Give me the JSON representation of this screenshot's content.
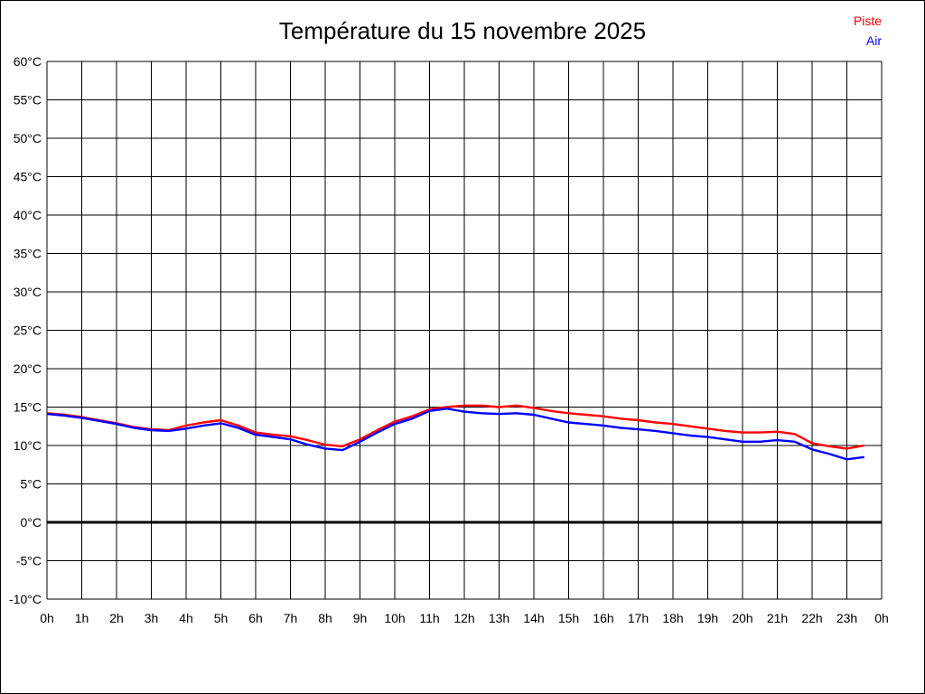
{
  "chart_data": {
    "type": "line",
    "title": "Température du 15 novembre 2025",
    "xlabel": "",
    "ylabel": "",
    "ylim": [
      -10,
      60
    ],
    "y_step": 5,
    "y_unit": "°C",
    "x_hours_range": [
      0,
      24
    ],
    "grid": true,
    "zero_line_bold": true,
    "legend_position": "top-right",
    "grid_color": "#000000",
    "background_color": "#ffffff",
    "y_tick_labels": [
      "60°C",
      "55°C",
      "50°C",
      "45°C",
      "40°C",
      "35°C",
      "30°C",
      "25°C",
      "20°C",
      "15°C",
      "10°C",
      "5°C",
      "0°C",
      "-5°C",
      "-10°C"
    ],
    "x_tick_labels": [
      "0h",
      "1h",
      "2h",
      "3h",
      "4h",
      "5h",
      "6h",
      "7h",
      "8h",
      "9h",
      "10h",
      "11h",
      "12h",
      "13h",
      "14h",
      "15h",
      "16h",
      "17h",
      "18h",
      "19h",
      "20h",
      "21h",
      "22h",
      "23h",
      "0h"
    ],
    "x": [
      0,
      0.5,
      1,
      1.5,
      2,
      2.5,
      3,
      3.5,
      4,
      4.5,
      5,
      5.5,
      6,
      6.5,
      7,
      7.5,
      8,
      8.5,
      9,
      9.5,
      10,
      10.5,
      11,
      11.5,
      12,
      12.5,
      13,
      13.5,
      14,
      14.5,
      15,
      15.5,
      16,
      16.5,
      17,
      17.5,
      18,
      18.5,
      19,
      19.5,
      20,
      20.5,
      21,
      21.5,
      22,
      22.5,
      23,
      23.5
    ],
    "series": [
      {
        "name": "Piste",
        "color": "#ff0000",
        "values": [
          14.2,
          14.0,
          13.7,
          13.3,
          12.9,
          12.4,
          12.1,
          12.0,
          12.6,
          13.0,
          13.3,
          12.6,
          11.7,
          11.4,
          11.2,
          10.7,
          10.1,
          9.9,
          10.8,
          12.0,
          13.1,
          13.8,
          14.7,
          15.0,
          15.2,
          15.2,
          15.0,
          15.2,
          14.9,
          14.5,
          14.2,
          14.0,
          13.8,
          13.5,
          13.3,
          13.0,
          12.8,
          12.5,
          12.2,
          11.9,
          11.7,
          11.7,
          11.8,
          11.5,
          10.3,
          9.9,
          9.6,
          10.0
        ]
      },
      {
        "name": "Air",
        "color": "#0000ff",
        "values": [
          14.1,
          13.9,
          13.6,
          13.2,
          12.8,
          12.3,
          12.0,
          11.9,
          12.2,
          12.6,
          12.9,
          12.3,
          11.4,
          11.1,
          10.8,
          10.1,
          9.6,
          9.4,
          10.5,
          11.7,
          12.8,
          13.5,
          14.5,
          14.8,
          14.4,
          14.2,
          14.1,
          14.2,
          14.0,
          13.5,
          13.0,
          12.8,
          12.6,
          12.3,
          12.1,
          11.9,
          11.6,
          11.3,
          11.1,
          10.8,
          10.5,
          10.5,
          10.7,
          10.5,
          9.5,
          8.9,
          8.2,
          8.5
        ]
      }
    ]
  }
}
